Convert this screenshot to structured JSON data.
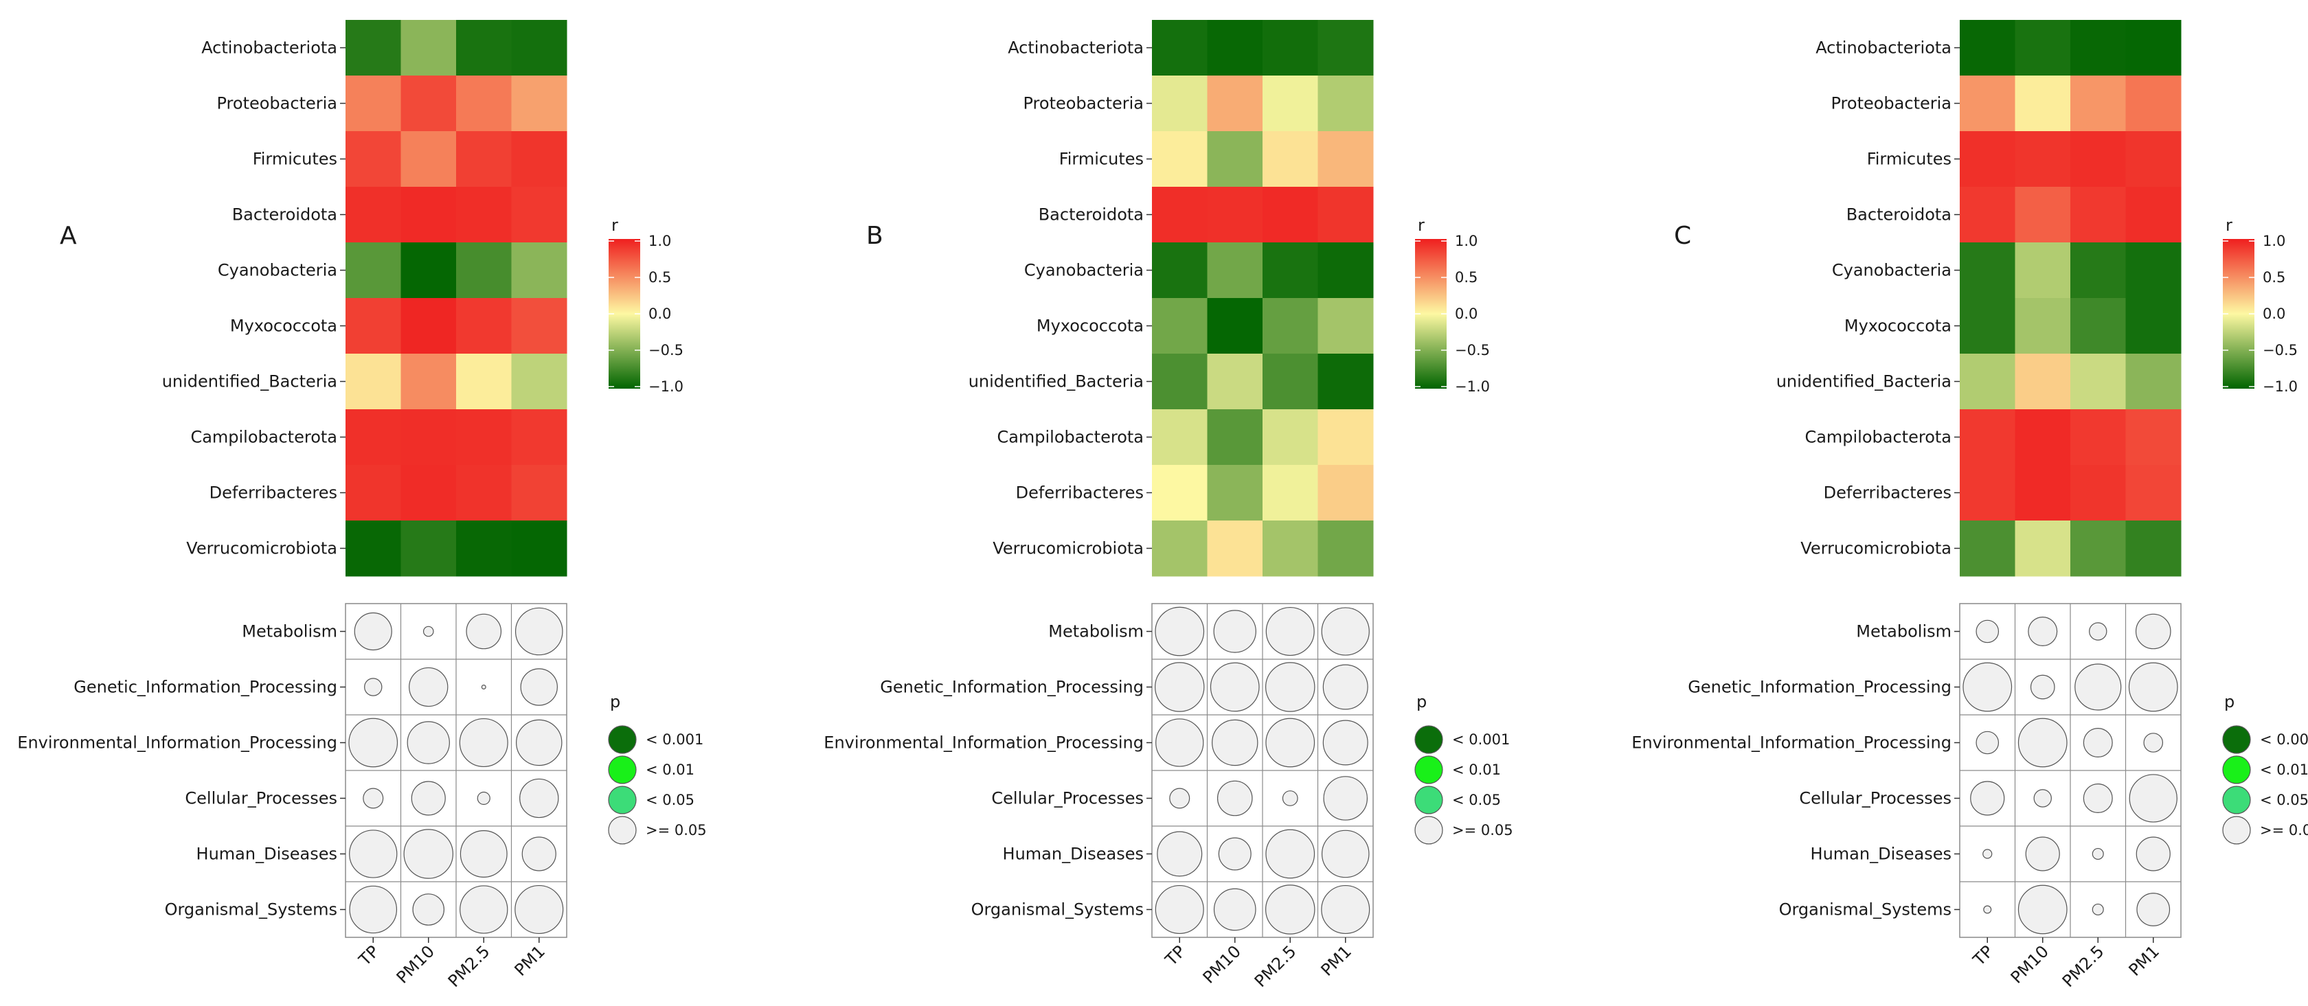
{
  "chart_data": {
    "type": "heatmap",
    "x_categories": [
      "TP",
      "PM10",
      "PM2.5",
      "PM1"
    ],
    "heat_rows": [
      "Actinobacteriota",
      "Proteobacteria",
      "Firmicutes",
      "Bacteroidota",
      "Cyanobacteria",
      "Myxococcota",
      "unidentified_Bacteria",
      "Campilobacterota",
      "Deferribacteres",
      "Verrucomicrobiota"
    ],
    "pathway_rows": [
      "Metabolism",
      "Genetic_Information_Processing",
      "Environmental_Information_Processing",
      "Cellular_Processes",
      "Human_Diseases",
      "Organismal_Systems"
    ],
    "r_legend": {
      "title": "r",
      "ticks": [
        "1.0",
        "0.5",
        "0.0",
        "−0.5",
        "−1.0"
      ],
      "range": [
        -1,
        1
      ]
    },
    "p_legend": {
      "title": "p",
      "items": [
        {
          "label": "< 0.001",
          "color": "#0b6e0b"
        },
        {
          "label": "< 0.01",
          "color": "#19f019"
        },
        {
          "label": "< 0.05",
          "color": "#3cdc78"
        },
        {
          "label": ">= 0.05",
          "color": "#f0f0f0"
        }
      ]
    },
    "colors": {
      "neg": "#006400",
      "mid": "#fdf8a2",
      "pos": "#ef1f1f"
    },
    "panels": [
      {
        "label": "A",
        "r": [
          [
            -0.85,
            -0.45,
            -0.9,
            -0.92
          ],
          [
            0.55,
            0.8,
            0.58,
            0.4
          ],
          [
            0.82,
            0.55,
            0.85,
            0.9
          ],
          [
            0.92,
            0.95,
            0.93,
            0.88
          ],
          [
            -0.65,
            -0.98,
            -0.72,
            -0.45
          ],
          [
            0.85,
            0.97,
            0.88,
            0.78
          ],
          [
            0.1,
            0.5,
            0.05,
            -0.25
          ],
          [
            0.92,
            0.93,
            0.92,
            0.88
          ],
          [
            0.9,
            0.94,
            0.91,
            0.84
          ],
          [
            -0.97,
            -0.85,
            -0.97,
            -0.98
          ]
        ],
        "size": [
          [
            0.75,
            0.2,
            0.7,
            0.95
          ],
          [
            0.35,
            0.78,
            0.08,
            0.74
          ],
          [
            0.98,
            0.85,
            0.97,
            0.92
          ],
          [
            0.4,
            0.68,
            0.25,
            0.78
          ],
          [
            0.96,
            0.99,
            0.94,
            0.68
          ],
          [
            0.95,
            0.63,
            0.96,
            0.97
          ]
        ]
      },
      {
        "label": "B",
        "r": [
          [
            -0.92,
            -0.97,
            -0.93,
            -0.88
          ],
          [
            -0.1,
            0.35,
            -0.05,
            -0.3
          ],
          [
            0.05,
            -0.45,
            0.1,
            0.3
          ],
          [
            0.93,
            0.92,
            0.95,
            0.9
          ],
          [
            -0.9,
            -0.55,
            -0.9,
            -0.95
          ],
          [
            -0.55,
            -0.98,
            -0.6,
            -0.35
          ],
          [
            -0.7,
            -0.2,
            -0.7,
            -0.95
          ],
          [
            -0.15,
            -0.65,
            -0.15,
            0.1
          ],
          [
            0.0,
            -0.45,
            -0.05,
            0.2
          ],
          [
            -0.35,
            0.1,
            -0.35,
            -0.55
          ]
        ],
        "size": [
          [
            0.98,
            0.85,
            0.97,
            0.96
          ],
          [
            0.99,
            0.98,
            0.99,
            0.9
          ],
          [
            0.96,
            0.92,
            0.98,
            0.9
          ],
          [
            0.4,
            0.7,
            0.3,
            0.88
          ],
          [
            0.9,
            0.65,
            0.98,
            0.95
          ],
          [
            0.97,
            0.84,
            0.99,
            0.97
          ]
        ]
      },
      {
        "label": "C",
        "r": [
          [
            -0.97,
            -0.9,
            -0.97,
            -0.98
          ],
          [
            0.45,
            0.05,
            0.45,
            0.6
          ],
          [
            0.92,
            0.9,
            0.93,
            0.9
          ],
          [
            0.88,
            0.7,
            0.88,
            0.93
          ],
          [
            -0.85,
            -0.3,
            -0.85,
            -0.92
          ],
          [
            -0.85,
            -0.35,
            -0.75,
            -0.92
          ],
          [
            -0.3,
            0.2,
            -0.2,
            -0.45
          ],
          [
            0.88,
            0.95,
            0.88,
            0.8
          ],
          [
            0.88,
            0.95,
            0.9,
            0.82
          ],
          [
            -0.7,
            -0.15,
            -0.65,
            -0.8
          ]
        ],
        "size": [
          [
            0.45,
            0.58,
            0.35,
            0.7
          ],
          [
            0.98,
            0.48,
            0.93,
            0.98
          ],
          [
            0.45,
            0.98,
            0.58,
            0.38
          ],
          [
            0.68,
            0.35,
            0.58,
            0.96
          ],
          [
            0.18,
            0.68,
            0.22,
            0.68
          ],
          [
            0.15,
            0.98,
            0.22,
            0.66
          ]
        ]
      }
    ]
  }
}
